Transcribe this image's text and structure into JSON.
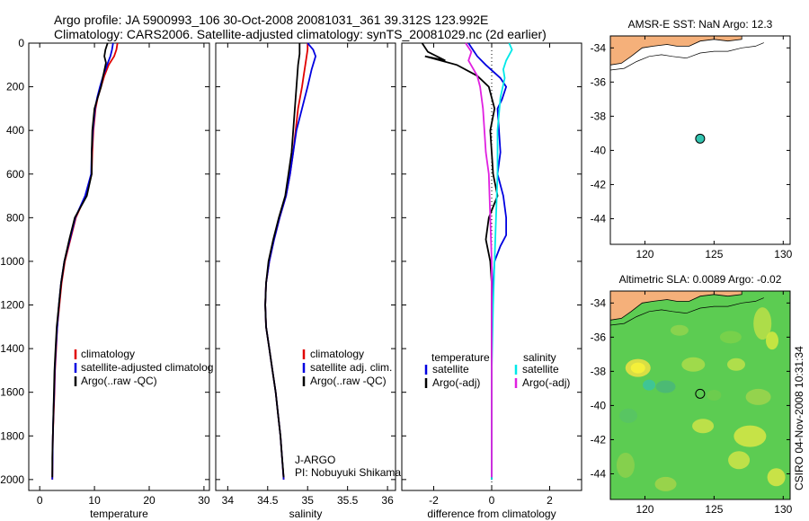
{
  "figure": {
    "title_line1": "Argo profile: JA 5900993_106 30-Oct-2008 20081031_361 39.312S 123.992E",
    "title_line2": "Climatology: CARS2006. Satellite-adjusted climatology: synTS_20081029.nc (2d earlier)",
    "credit": "CSIRO 04-Nov-2008 10:31:34"
  },
  "colors": {
    "climatology": "#e00000",
    "satellite": "#0000e0",
    "argo": "#000000",
    "sal_satellite": "#00e8e8",
    "sal_argo": "#e020e0",
    "land": "#f5b07a",
    "sst_marker": "#33c4b0"
  },
  "chart_data": [
    {
      "id": "temperature",
      "type": "line",
      "xlabel": "temperature",
      "ylabel": "",
      "xlim": [
        -2,
        31
      ],
      "ylim": [
        2050,
        0
      ],
      "xticks": [
        0,
        10,
        20,
        30
      ],
      "yticks": [
        0,
        200,
        400,
        600,
        800,
        1000,
        1200,
        1400,
        1600,
        1800,
        2000
      ],
      "legend": [
        "climatology",
        "satellite-adjusted climatolog",
        "Argo(..raw -QC)"
      ],
      "series": [
        {
          "name": "climatology",
          "color_key": "climatology",
          "points": [
            [
              14.2,
              0
            ],
            [
              14.0,
              30
            ],
            [
              13.6,
              60
            ],
            [
              12.6,
              100
            ],
            [
              11.8,
              150
            ],
            [
              11.2,
              200
            ],
            [
              10.6,
              250
            ],
            [
              10.2,
              300
            ],
            [
              9.8,
              400
            ],
            [
              9.6,
              500
            ],
            [
              9.5,
              600
            ],
            [
              8.4,
              700
            ],
            [
              6.6,
              800
            ],
            [
              5.6,
              900
            ],
            [
              4.6,
              1000
            ],
            [
              4.0,
              1100
            ],
            [
              3.6,
              1200
            ],
            [
              3.2,
              1300
            ],
            [
              3.0,
              1400
            ],
            [
              2.8,
              1500
            ],
            [
              2.7,
              1600
            ],
            [
              2.55,
              1700
            ],
            [
              2.4,
              1800
            ],
            [
              2.35,
              1900
            ],
            [
              2.3,
              2000
            ]
          ]
        },
        {
          "name": "satellite-adjusted climatology",
          "color_key": "satellite",
          "points": [
            [
              13.4,
              0
            ],
            [
              13.2,
              30
            ],
            [
              12.9,
              60
            ],
            [
              12.3,
              100
            ],
            [
              11.6,
              150
            ],
            [
              11.0,
              200
            ],
            [
              10.5,
              250
            ],
            [
              10.1,
              300
            ],
            [
              9.7,
              400
            ],
            [
              9.5,
              500
            ],
            [
              9.4,
              600
            ],
            [
              8.3,
              700
            ],
            [
              6.5,
              800
            ],
            [
              5.5,
              900
            ],
            [
              4.5,
              1000
            ],
            [
              3.9,
              1100
            ],
            [
              3.5,
              1200
            ],
            [
              3.2,
              1300
            ],
            [
              2.95,
              1400
            ],
            [
              2.75,
              1500
            ],
            [
              2.65,
              1600
            ],
            [
              2.5,
              1700
            ],
            [
              2.4,
              1800
            ],
            [
              2.35,
              1900
            ],
            [
              2.3,
              2000
            ]
          ]
        },
        {
          "name": "Argo(..raw -QC)",
          "color_key": "argo",
          "points": [
            [
              12.4,
              0
            ],
            [
              12.0,
              30
            ],
            [
              11.8,
              60
            ],
            [
              12.1,
              90
            ],
            [
              11.6,
              150
            ],
            [
              11.2,
              200
            ],
            [
              10.6,
              250
            ],
            [
              10.0,
              300
            ],
            [
              9.6,
              400
            ],
            [
              9.5,
              500
            ],
            [
              9.5,
              600
            ],
            [
              8.6,
              700
            ],
            [
              6.4,
              800
            ],
            [
              5.4,
              900
            ],
            [
              4.5,
              1000
            ],
            [
              3.9,
              1100
            ],
            [
              3.5,
              1200
            ],
            [
              3.1,
              1300
            ],
            [
              2.9,
              1400
            ],
            [
              2.7,
              1500
            ],
            [
              2.6,
              1600
            ],
            [
              2.5,
              1700
            ],
            [
              2.4,
              1800
            ],
            [
              2.3,
              1900
            ],
            [
              2.3,
              1990
            ]
          ]
        }
      ]
    },
    {
      "id": "salinity",
      "type": "line",
      "xlabel": "salinity",
      "ylabel": "",
      "xlim": [
        33.85,
        36.1
      ],
      "ylim": [
        2050,
        0
      ],
      "xticks": [
        34,
        34.5,
        35,
        35.5,
        36
      ],
      "yticks": [
        0,
        200,
        400,
        600,
        800,
        1000,
        1200,
        1400,
        1600,
        1800,
        2000
      ],
      "legend": [
        "climatology",
        "satellite adj. clim.",
        "Argo(..raw -QC)"
      ],
      "annotation": [
        "J-ARGO",
        "PI: Nobuyuki Shikama"
      ],
      "series": [
        {
          "name": "climatology",
          "color_key": "climatology",
          "points": [
            [
              35.0,
              0
            ],
            [
              35.0,
              30
            ],
            [
              34.98,
              80
            ],
            [
              34.95,
              150
            ],
            [
              34.93,
              200
            ],
            [
              34.88,
              300
            ],
            [
              34.85,
              400
            ],
            [
              34.82,
              500
            ],
            [
              34.78,
              600
            ],
            [
              34.73,
              700
            ],
            [
              34.65,
              800
            ],
            [
              34.58,
              900
            ],
            [
              34.52,
              1000
            ],
            [
              34.48,
              1100
            ],
            [
              34.47,
              1200
            ],
            [
              34.48,
              1300
            ],
            [
              34.52,
              1400
            ],
            [
              34.56,
              1500
            ],
            [
              34.6,
              1600
            ],
            [
              34.63,
              1700
            ],
            [
              34.66,
              1800
            ],
            [
              34.68,
              1900
            ],
            [
              34.7,
              2000
            ]
          ]
        },
        {
          "name": "satellite adj. clim.",
          "color_key": "satellite",
          "points": [
            [
              35.0,
              0
            ],
            [
              35.07,
              30
            ],
            [
              35.1,
              60
            ],
            [
              35.05,
              120
            ],
            [
              35.0,
              200
            ],
            [
              34.93,
              300
            ],
            [
              34.86,
              400
            ],
            [
              34.82,
              500
            ],
            [
              34.78,
              600
            ],
            [
              34.73,
              700
            ],
            [
              34.65,
              800
            ],
            [
              34.58,
              900
            ],
            [
              34.52,
              1000
            ],
            [
              34.48,
              1100
            ],
            [
              34.47,
              1200
            ],
            [
              34.48,
              1300
            ],
            [
              34.52,
              1400
            ],
            [
              34.56,
              1500
            ],
            [
              34.6,
              1600
            ],
            [
              34.63,
              1700
            ],
            [
              34.66,
              1800
            ],
            [
              34.68,
              1900
            ],
            [
              34.7,
              2000
            ]
          ]
        },
        {
          "name": "Argo(..raw -QC)",
          "color_key": "argo",
          "points": [
            [
              34.9,
              0
            ],
            [
              34.9,
              50
            ],
            [
              34.88,
              100
            ],
            [
              34.86,
              200
            ],
            [
              34.84,
              300
            ],
            [
              34.82,
              400
            ],
            [
              34.8,
              500
            ],
            [
              34.76,
              600
            ],
            [
              34.72,
              700
            ],
            [
              34.64,
              800
            ],
            [
              34.57,
              900
            ],
            [
              34.51,
              1000
            ],
            [
              34.48,
              1100
            ],
            [
              34.47,
              1200
            ],
            [
              34.48,
              1300
            ],
            [
              34.52,
              1400
            ],
            [
              34.56,
              1500
            ],
            [
              34.6,
              1600
            ],
            [
              34.63,
              1700
            ],
            [
              34.66,
              1800
            ],
            [
              34.68,
              1900
            ],
            [
              34.7,
              1990
            ]
          ]
        }
      ]
    },
    {
      "id": "difference",
      "type": "line",
      "xlabel": "difference from climatology",
      "ylabel": "",
      "xlim": [
        -3.1,
        3.1
      ],
      "ylim": [
        2050,
        0
      ],
      "xticks": [
        -2,
        0,
        2
      ],
      "yticks": [
        0,
        200,
        400,
        600,
        800,
        1000,
        1200,
        1400,
        1600,
        1800,
        2000
      ],
      "legend": [
        "temperature",
        "satellite",
        "Argo(-adj)",
        "salinity",
        "satellite",
        "Argo(-adj)"
      ],
      "series": [
        {
          "name": "temperature satellite",
          "color_key": "satellite",
          "points": [
            [
              -0.8,
              0
            ],
            [
              -0.7,
              20
            ],
            [
              -0.5,
              60
            ],
            [
              -0.2,
              100
            ],
            [
              0.3,
              160
            ],
            [
              0.5,
              200
            ],
            [
              0.35,
              260
            ],
            [
              0.2,
              300
            ],
            [
              0.25,
              400
            ],
            [
              0.3,
              500
            ],
            [
              0.2,
              600
            ],
            [
              0.4,
              700
            ],
            [
              0.5,
              800
            ],
            [
              0.5,
              880
            ],
            [
              0.3,
              930
            ],
            [
              0.1,
              1000
            ],
            [
              0.05,
              1100
            ],
            [
              0.0,
              1200
            ],
            [
              0.0,
              1400
            ],
            [
              0.0,
              1600
            ],
            [
              0.0,
              1800
            ],
            [
              0.0,
              2000
            ]
          ]
        },
        {
          "name": "temperature Argo(-adj)",
          "color_key": "argo",
          "points": [
            [
              -2.4,
              0
            ],
            [
              -2.2,
              40
            ],
            [
              -1.6,
              80
            ],
            [
              -2.3,
              60
            ],
            [
              -1.2,
              100
            ],
            [
              -0.5,
              150
            ],
            [
              -0.1,
              200
            ],
            [
              0.1,
              300
            ],
            [
              -0.05,
              400
            ],
            [
              0.0,
              500
            ],
            [
              0.05,
              600
            ],
            [
              0.2,
              700
            ],
            [
              -0.1,
              800
            ],
            [
              -0.2,
              900
            ],
            [
              -0.05,
              1000
            ],
            [
              0.0,
              1100
            ],
            [
              0.0,
              1300
            ],
            [
              0.0,
              1500
            ],
            [
              0.0,
              1700
            ],
            [
              0.0,
              1900
            ],
            [
              0.0,
              2000
            ]
          ]
        },
        {
          "name": "salinity satellite",
          "color_key": "sal_satellite",
          "points": [
            [
              0.6,
              0
            ],
            [
              0.7,
              30
            ],
            [
              0.5,
              80
            ],
            [
              0.4,
              120
            ],
            [
              0.45,
              160
            ],
            [
              0.3,
              250
            ],
            [
              0.2,
              400
            ],
            [
              0.2,
              600
            ],
            [
              0.15,
              800
            ],
            [
              0.1,
              1000
            ],
            [
              0.05,
              1200
            ],
            [
              0.0,
              1500
            ],
            [
              0.0,
              1800
            ],
            [
              0.0,
              2000
            ]
          ]
        },
        {
          "name": "salinity Argo(-adj)",
          "color_key": "sal_argo",
          "points": [
            [
              -0.9,
              0
            ],
            [
              -0.7,
              40
            ],
            [
              -0.8,
              80
            ],
            [
              -0.5,
              150
            ],
            [
              -0.4,
              200
            ],
            [
              -0.3,
              300
            ],
            [
              -0.25,
              400
            ],
            [
              -0.2,
              500
            ],
            [
              -0.1,
              600
            ],
            [
              -0.05,
              800
            ],
            [
              0.0,
              1000
            ],
            [
              0.0,
              1300
            ],
            [
              0.0,
              1600
            ],
            [
              0.0,
              1900
            ],
            [
              0.0,
              1990
            ]
          ]
        }
      ]
    },
    {
      "id": "sst_map",
      "type": "scatter",
      "title": "AMSR-E SST: NaN Argo: 12.3",
      "xlim": [
        117.5,
        130.5
      ],
      "ylim": [
        -45.5,
        -33.3
      ],
      "xticks": [
        120,
        125,
        130
      ],
      "yticks": [
        -34,
        -36,
        -38,
        -40,
        -42,
        -44
      ],
      "profile_location": {
        "lon": 123.992,
        "lat": -39.312
      }
    },
    {
      "id": "sla_map",
      "type": "heatmap",
      "title": "Altimetric SLA: 0.0089 Argo: -0.02",
      "xlim": [
        117.5,
        130.5
      ],
      "ylim": [
        -45.5,
        -33.3
      ],
      "xticks": [
        120,
        125,
        130
      ],
      "yticks": [
        -34,
        -36,
        -38,
        -40,
        -42,
        -44
      ],
      "profile_location": {
        "lon": 123.992,
        "lat": -39.312
      }
    }
  ]
}
